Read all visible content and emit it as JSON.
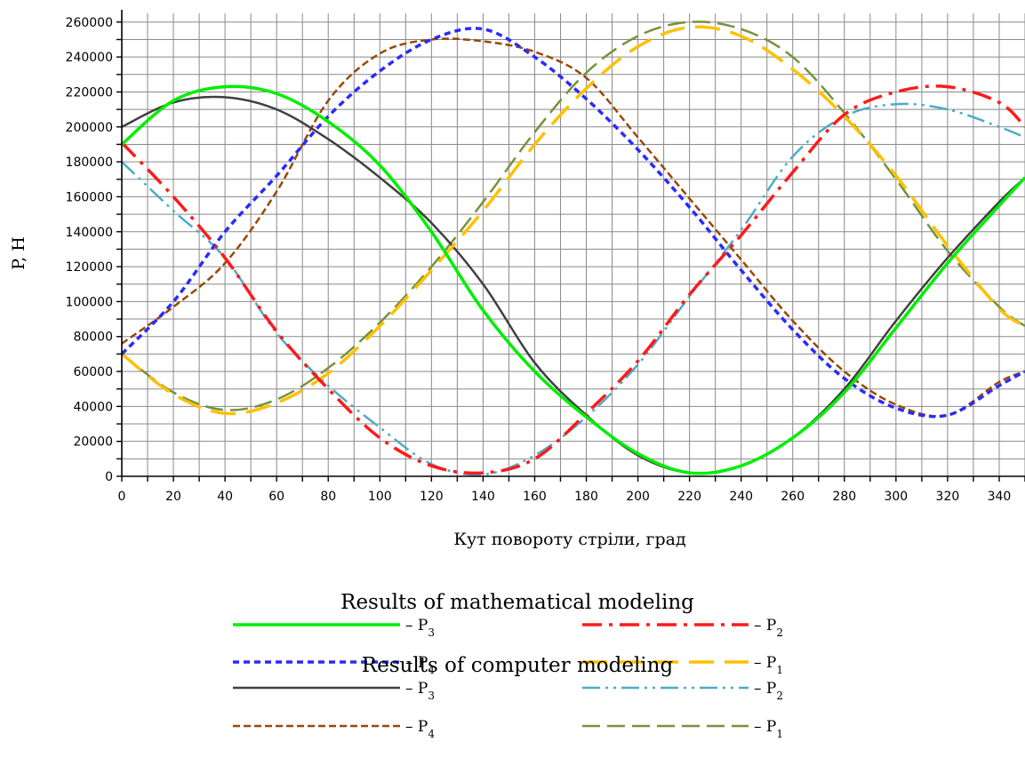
{
  "chart_data": {
    "type": "line",
    "xlabel": "Кут повороту стріли, град",
    "ylabel": "P, Н",
    "xlim": [
      0,
      350
    ],
    "ylim": [
      0,
      265000
    ],
    "xticks": [
      0,
      20,
      40,
      60,
      80,
      100,
      120,
      140,
      160,
      180,
      200,
      220,
      240,
      260,
      280,
      300,
      320,
      340
    ],
    "yticks": [
      0,
      20000,
      40000,
      60000,
      80000,
      100000,
      120000,
      140000,
      160000,
      180000,
      200000,
      220000,
      240000,
      260000
    ],
    "grid": true,
    "legend_placement": "below",
    "legend_groups": [
      {
        "title": "Results of mathematical modeling",
        "series": [
          "math_P3",
          "math_P2",
          "math_P4",
          "math_P1"
        ]
      },
      {
        "title": "Results of computer modeling",
        "series": [
          "comp_P3",
          "comp_P2",
          "comp_P4",
          "comp_P1"
        ]
      }
    ],
    "x": [
      0,
      20,
      40,
      60,
      80,
      100,
      120,
      140,
      160,
      180,
      200,
      220,
      240,
      260,
      280,
      300,
      320,
      340,
      350
    ],
    "series": [
      {
        "id": "math_P3",
        "name": "– P3",
        "group": "math",
        "color": "#00ee00",
        "dash": "",
        "width": 3.5,
        "values": [
          190000,
          215000,
          223000,
          219000,
          203000,
          178000,
          140000,
          95000,
          60000,
          34000,
          13000,
          2000,
          6000,
          22000,
          48000,
          85000,
          122000,
          155000,
          171000
        ]
      },
      {
        "id": "math_P2",
        "name": "– P2",
        "group": "math",
        "color": "#ff1a1a",
        "dash": "22 8 4 8",
        "width": 3.5,
        "values": [
          191000,
          160000,
          125000,
          83000,
          50000,
          22000,
          6000,
          2000,
          10000,
          36000,
          66000,
          104000,
          138000,
          174000,
          207000,
          220000,
          223000,
          214000,
          200000
        ]
      },
      {
        "id": "math_P4",
        "name": "– P4",
        "group": "math",
        "color": "#2a2aff",
        "dash": "7 5",
        "width": 3.5,
        "values": [
          70000,
          100000,
          140000,
          172000,
          206000,
          232000,
          250000,
          256000,
          240000,
          216000,
          187000,
          154000,
          118000,
          84000,
          56000,
          39000,
          35000,
          52000,
          60000
        ]
      },
      {
        "id": "math_P1",
        "name": "– P1",
        "group": "math",
        "color": "#ffc000",
        "dash": "28 12",
        "width": 3.5,
        "values": [
          70000,
          47000,
          36000,
          42000,
          59000,
          86000,
          118000,
          152000,
          190000,
          222000,
          246000,
          257000,
          252000,
          233000,
          206000,
          172000,
          132000,
          96000,
          86000
        ]
      },
      {
        "id": "comp_P3",
        "name": "– P3",
        "group": "comp",
        "color": "#404040",
        "dash": "",
        "width": 2.5,
        "values": [
          200000,
          214000,
          217000,
          210000,
          193000,
          171000,
          145000,
          110000,
          65000,
          35000,
          12000,
          2000,
          6000,
          22000,
          50000,
          89000,
          125000,
          157000,
          171000
        ]
      },
      {
        "id": "comp_P2",
        "name": "– P2",
        "group": "comp",
        "color": "#4bacc6",
        "dash": "20 6 3 6 3 6",
        "width": 2.5,
        "values": [
          180000,
          152000,
          125000,
          82000,
          52000,
          28000,
          7000,
          1000,
          12000,
          34000,
          64000,
          103000,
          141000,
          183000,
          206000,
          213000,
          210000,
          200000,
          194000
        ]
      },
      {
        "id": "comp_P4",
        "name": "– P4",
        "group": "comp",
        "color": "#984807",
        "dash": "8 4",
        "width": 2.5,
        "values": [
          76000,
          97000,
          122000,
          163000,
          215000,
          242000,
          250000,
          249000,
          243000,
          228000,
          194000,
          159000,
          124000,
          89000,
          60000,
          41000,
          35000,
          54000,
          60000
        ]
      },
      {
        "id": "comp_P1",
        "name": "– P1",
        "group": "comp",
        "color": "#76923c",
        "dash": "20 8",
        "width": 2.5,
        "values": [
          70000,
          48000,
          38000,
          44000,
          62000,
          88000,
          120000,
          157000,
          197000,
          231000,
          252000,
          260000,
          256000,
          240000,
          208000,
          170000,
          129000,
          97000,
          86000
        ]
      }
    ]
  }
}
